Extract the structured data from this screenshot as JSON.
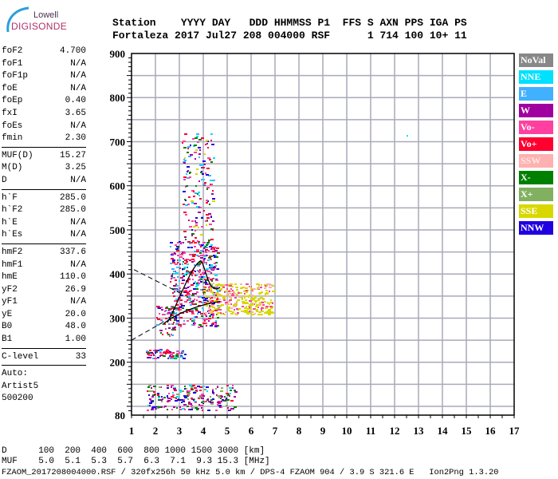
{
  "logo": {
    "line1": "Lowell",
    "line2": "DIGISONDE"
  },
  "header": {
    "labels": "Station    YYYY DAY   DDD HHMMSS P1  FFS S AXN PPS IGA PS",
    "values": "Fortaleza 2017 Jul27 208 004000 RSF      1 714 100 10+ 11"
  },
  "params": {
    "group1": [
      [
        "foF2",
        "4.700"
      ],
      [
        "foF1",
        "N/A"
      ],
      [
        "foF1p",
        "N/A"
      ],
      [
        "foE",
        "N/A"
      ],
      [
        "foEp",
        "0.40"
      ],
      [
        "fxI",
        "3.65"
      ],
      [
        "foEs",
        "N/A"
      ],
      [
        "fmin",
        "2.30"
      ]
    ],
    "group2": [
      [
        "MUF(D)",
        "15.27"
      ],
      [
        "M(D)",
        "3.25"
      ],
      [
        "D",
        "N/A"
      ]
    ],
    "group3": [
      [
        "h`F",
        "285.0"
      ],
      [
        "h`F2",
        "285.0"
      ],
      [
        "h`E",
        "N/A"
      ],
      [
        "h`Es",
        "N/A"
      ]
    ],
    "group4": [
      [
        "hmF2",
        "337.6"
      ],
      [
        "hmF1",
        "N/A"
      ],
      [
        "hmE",
        "110.0"
      ],
      [
        "yF2",
        "26.9"
      ],
      [
        "yF1",
        "N/A"
      ],
      [
        "yE",
        "20.0"
      ],
      [
        "B0",
        "48.0"
      ],
      [
        "B1",
        "1.00"
      ]
    ],
    "group5": [
      [
        "C-level",
        "33"
      ]
    ],
    "auto": [
      "Auto:",
      "Artist5",
      "500200"
    ]
  },
  "legend": [
    {
      "label": "NoVal",
      "color": "#888888"
    },
    {
      "label": "NNE",
      "color": "#00e0ff"
    },
    {
      "label": "E",
      "color": "#40b0ff"
    },
    {
      "label": "W",
      "color": "#a000a0"
    },
    {
      "label": "Vo-",
      "color": "#ff40a0"
    },
    {
      "label": "Vo+",
      "color": "#ff0030"
    },
    {
      "label": "SSW",
      "color": "#ffb0b0"
    },
    {
      "label": "X-",
      "color": "#008000"
    },
    {
      "label": "X+",
      "color": "#80b060"
    },
    {
      "label": "SSE",
      "color": "#d8d800"
    },
    {
      "label": "NNW",
      "color": "#2000e0"
    }
  ],
  "axes": {
    "x_ticks": [
      "1",
      "2",
      "3",
      "4",
      "5",
      "6",
      "7",
      "8",
      "9",
      "10",
      "11",
      "12",
      "13",
      "14",
      "15",
      "16",
      "17"
    ],
    "y_ticks": [
      "80",
      "200",
      "300",
      "400",
      "500",
      "600",
      "700",
      "800",
      "900"
    ]
  },
  "footer": {
    "d_row": "D      100  200  400  600  800 1000 1500 3000 [km]",
    "muf_row": "MUF    5.0  5.1  5.3  5.7  6.3  7.1  9.3 15.3 [MHz]",
    "file_row": "FZAOM_2017208004000.RSF / 320fx256h 50 kHz 5.0 km / DPS-4 FZAOM 904 / 3.9 S 321.6 E   Ion2Png 1.3.20"
  }
}
